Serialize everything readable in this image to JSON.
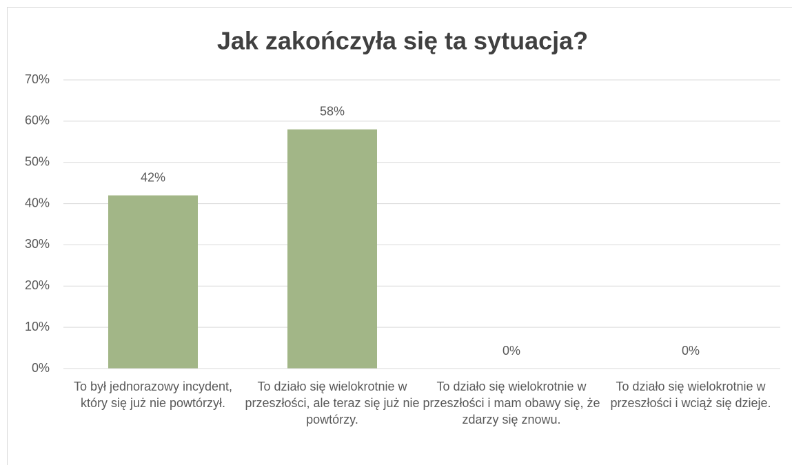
{
  "chart_data": {
    "type": "bar",
    "title": "Jak zakończyła się ta sytuacja?",
    "categories": [
      "To był jednorazowy incydent, który się już nie powtórzył.",
      "To działo się wielokrotnie w przeszłości, ale teraz się już nie powtórzy.",
      "To działo się wielokrotnie w przeszłości i mam obawy się, że zdarzy się znowu.",
      "To działo się wielokrotnie w przeszłości i wciąż się dzieje."
    ],
    "values": [
      42,
      58,
      0,
      0
    ],
    "value_labels": [
      "42%",
      "58%",
      "0%",
      "0%"
    ],
    "color": "#a2b687",
    "ylim": [
      0,
      70
    ],
    "yticks": [
      {
        "value": 0,
        "label": "0%"
      },
      {
        "value": 10,
        "label": "10%"
      },
      {
        "value": 20,
        "label": "20%"
      },
      {
        "value": 30,
        "label": "30%"
      },
      {
        "value": 40,
        "label": "40%"
      },
      {
        "value": 50,
        "label": "50%"
      },
      {
        "value": 60,
        "label": "60%"
      },
      {
        "value": 70,
        "label": "70%"
      }
    ],
    "grid": true
  }
}
